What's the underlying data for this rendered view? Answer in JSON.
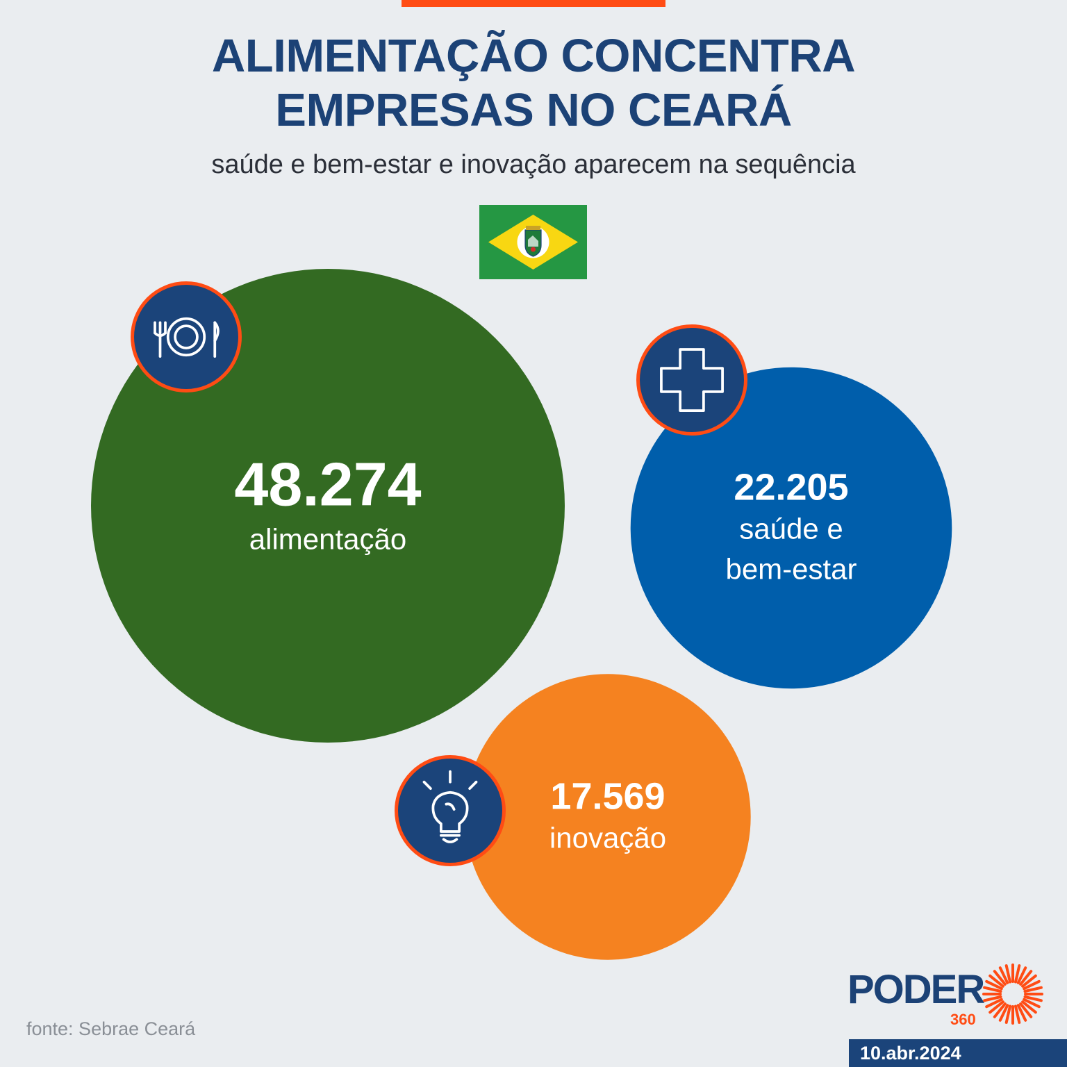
{
  "header": {
    "title_line1": "ALIMENTAÇÃO CONCENTRA",
    "title_line2": "EMPRESAS NO CEARÁ",
    "subtitle": "saúde e bem-estar e inovação aparecem na sequência"
  },
  "flag": {
    "icon": "ceara-flag-icon"
  },
  "chart_data": {
    "type": "bubble",
    "title": "ALIMENTAÇÃO CONCENTRA EMPRESAS NO CEARÁ",
    "subtitle": "saúde e bem-estar e inovação aparecem na sequência",
    "series": [
      {
        "value": 48274,
        "value_label": "48.274",
        "label_lines": [
          "alimentação"
        ],
        "color": "#336a22",
        "icon": "plate-cutlery-icon"
      },
      {
        "value": 22205,
        "value_label": "22.205",
        "label_lines": [
          "saúde e",
          "bem-estar"
        ],
        "color": "#005eab",
        "icon": "medical-cross-icon"
      },
      {
        "value": 17569,
        "value_label": "17.569",
        "label_lines": [
          "inovação"
        ],
        "color": "#f58220",
        "icon": "lightbulb-icon"
      }
    ]
  },
  "colors": {
    "background": "#eaedf0",
    "title": "#1c4276",
    "accent": "#ff4c14",
    "badge": "#1b447a"
  },
  "footer": {
    "source": "fonte: Sebrae Ceará",
    "logo_word": "PODER",
    "logo_number": "360",
    "date": "10.abr.2024"
  }
}
